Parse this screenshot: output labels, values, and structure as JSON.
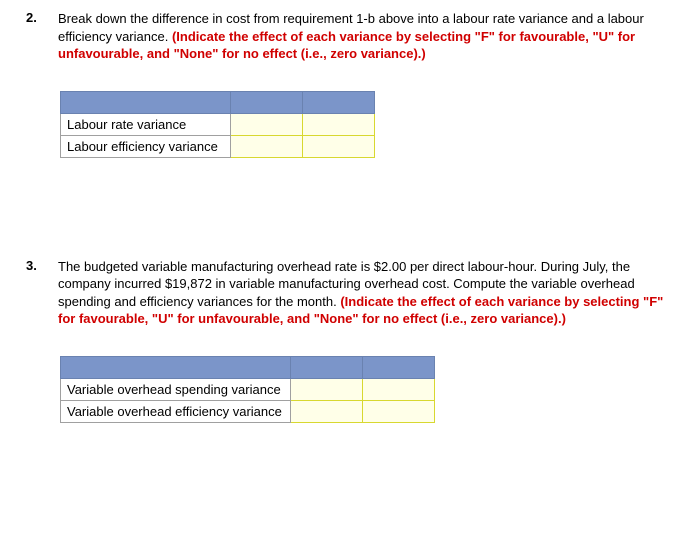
{
  "q2": {
    "number": "2.",
    "text_black": "Break down the difference in cost from requirement 1-b above into a labour rate variance and a labour efficiency variance. ",
    "text_red": "(Indicate the effect of each variance by selecting \"F\" for favourable, \"U\" for unfavourable, and \"None\" for no effect (i.e., zero variance).)",
    "table": {
      "rows": [
        {
          "label": "Labour rate variance",
          "val1": "",
          "val2": ""
        },
        {
          "label": "Labour efficiency variance",
          "val1": "",
          "val2": ""
        }
      ]
    }
  },
  "q3": {
    "number": "3.",
    "text_black": "The budgeted variable manufacturing overhead rate is $2.00 per direct labour-hour. During July, the company incurred $19,872 in variable manufacturing overhead cost. Compute the variable overhead spending and efficiency variances for the month. ",
    "text_red": "(Indicate the effect of each variance by selecting \"F\" for favourable, \"U\" for unfavourable, and \"None\" for no effect (i.e., zero variance).)",
    "table": {
      "rows": [
        {
          "label": "Variable overhead spending variance",
          "val1": "",
          "val2": ""
        },
        {
          "label": "Variable overhead efficiency variance",
          "val1": "",
          "val2": ""
        }
      ]
    }
  }
}
